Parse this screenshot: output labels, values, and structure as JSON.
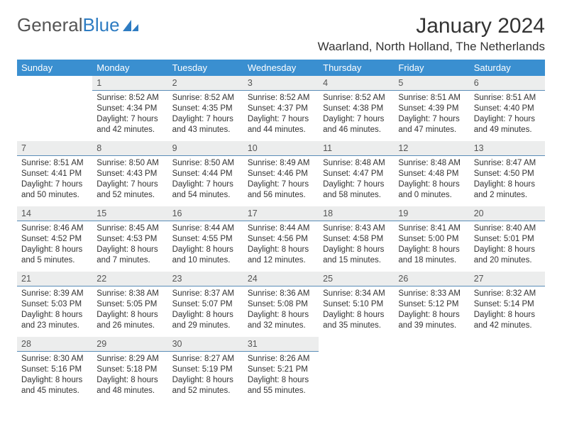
{
  "brand": {
    "part1": "General",
    "part2": "Blue"
  },
  "title": "January 2024",
  "location": "Waarland, North Holland, The Netherlands",
  "colors": {
    "header_bg": "#3a8fd0",
    "daynum_bg": "#eceded",
    "daynum_border": "#5a8db8"
  },
  "weekdays": [
    "Sunday",
    "Monday",
    "Tuesday",
    "Wednesday",
    "Thursday",
    "Friday",
    "Saturday"
  ],
  "weeks": [
    {
      "nums": [
        "",
        "1",
        "2",
        "3",
        "4",
        "5",
        "6"
      ],
      "cells": [
        null,
        {
          "sunrise": "Sunrise: 8:52 AM",
          "sunset": "Sunset: 4:34 PM",
          "day": "Daylight: 7 hours and 42 minutes."
        },
        {
          "sunrise": "Sunrise: 8:52 AM",
          "sunset": "Sunset: 4:35 PM",
          "day": "Daylight: 7 hours and 43 minutes."
        },
        {
          "sunrise": "Sunrise: 8:52 AM",
          "sunset": "Sunset: 4:37 PM",
          "day": "Daylight: 7 hours and 44 minutes."
        },
        {
          "sunrise": "Sunrise: 8:52 AM",
          "sunset": "Sunset: 4:38 PM",
          "day": "Daylight: 7 hours and 46 minutes."
        },
        {
          "sunrise": "Sunrise: 8:51 AM",
          "sunset": "Sunset: 4:39 PM",
          "day": "Daylight: 7 hours and 47 minutes."
        },
        {
          "sunrise": "Sunrise: 8:51 AM",
          "sunset": "Sunset: 4:40 PM",
          "day": "Daylight: 7 hours and 49 minutes."
        }
      ]
    },
    {
      "nums": [
        "7",
        "8",
        "9",
        "10",
        "11",
        "12",
        "13"
      ],
      "cells": [
        {
          "sunrise": "Sunrise: 8:51 AM",
          "sunset": "Sunset: 4:41 PM",
          "day": "Daylight: 7 hours and 50 minutes."
        },
        {
          "sunrise": "Sunrise: 8:50 AM",
          "sunset": "Sunset: 4:43 PM",
          "day": "Daylight: 7 hours and 52 minutes."
        },
        {
          "sunrise": "Sunrise: 8:50 AM",
          "sunset": "Sunset: 4:44 PM",
          "day": "Daylight: 7 hours and 54 minutes."
        },
        {
          "sunrise": "Sunrise: 8:49 AM",
          "sunset": "Sunset: 4:46 PM",
          "day": "Daylight: 7 hours and 56 minutes."
        },
        {
          "sunrise": "Sunrise: 8:48 AM",
          "sunset": "Sunset: 4:47 PM",
          "day": "Daylight: 7 hours and 58 minutes."
        },
        {
          "sunrise": "Sunrise: 8:48 AM",
          "sunset": "Sunset: 4:48 PM",
          "day": "Daylight: 8 hours and 0 minutes."
        },
        {
          "sunrise": "Sunrise: 8:47 AM",
          "sunset": "Sunset: 4:50 PM",
          "day": "Daylight: 8 hours and 2 minutes."
        }
      ]
    },
    {
      "nums": [
        "14",
        "15",
        "16",
        "17",
        "18",
        "19",
        "20"
      ],
      "cells": [
        {
          "sunrise": "Sunrise: 8:46 AM",
          "sunset": "Sunset: 4:52 PM",
          "day": "Daylight: 8 hours and 5 minutes."
        },
        {
          "sunrise": "Sunrise: 8:45 AM",
          "sunset": "Sunset: 4:53 PM",
          "day": "Daylight: 8 hours and 7 minutes."
        },
        {
          "sunrise": "Sunrise: 8:44 AM",
          "sunset": "Sunset: 4:55 PM",
          "day": "Daylight: 8 hours and 10 minutes."
        },
        {
          "sunrise": "Sunrise: 8:44 AM",
          "sunset": "Sunset: 4:56 PM",
          "day": "Daylight: 8 hours and 12 minutes."
        },
        {
          "sunrise": "Sunrise: 8:43 AM",
          "sunset": "Sunset: 4:58 PM",
          "day": "Daylight: 8 hours and 15 minutes."
        },
        {
          "sunrise": "Sunrise: 8:41 AM",
          "sunset": "Sunset: 5:00 PM",
          "day": "Daylight: 8 hours and 18 minutes."
        },
        {
          "sunrise": "Sunrise: 8:40 AM",
          "sunset": "Sunset: 5:01 PM",
          "day": "Daylight: 8 hours and 20 minutes."
        }
      ]
    },
    {
      "nums": [
        "21",
        "22",
        "23",
        "24",
        "25",
        "26",
        "27"
      ],
      "cells": [
        {
          "sunrise": "Sunrise: 8:39 AM",
          "sunset": "Sunset: 5:03 PM",
          "day": "Daylight: 8 hours and 23 minutes."
        },
        {
          "sunrise": "Sunrise: 8:38 AM",
          "sunset": "Sunset: 5:05 PM",
          "day": "Daylight: 8 hours and 26 minutes."
        },
        {
          "sunrise": "Sunrise: 8:37 AM",
          "sunset": "Sunset: 5:07 PM",
          "day": "Daylight: 8 hours and 29 minutes."
        },
        {
          "sunrise": "Sunrise: 8:36 AM",
          "sunset": "Sunset: 5:08 PM",
          "day": "Daylight: 8 hours and 32 minutes."
        },
        {
          "sunrise": "Sunrise: 8:34 AM",
          "sunset": "Sunset: 5:10 PM",
          "day": "Daylight: 8 hours and 35 minutes."
        },
        {
          "sunrise": "Sunrise: 8:33 AM",
          "sunset": "Sunset: 5:12 PM",
          "day": "Daylight: 8 hours and 39 minutes."
        },
        {
          "sunrise": "Sunrise: 8:32 AM",
          "sunset": "Sunset: 5:14 PM",
          "day": "Daylight: 8 hours and 42 minutes."
        }
      ]
    },
    {
      "nums": [
        "28",
        "29",
        "30",
        "31",
        "",
        "",
        ""
      ],
      "cells": [
        {
          "sunrise": "Sunrise: 8:30 AM",
          "sunset": "Sunset: 5:16 PM",
          "day": "Daylight: 8 hours and 45 minutes."
        },
        {
          "sunrise": "Sunrise: 8:29 AM",
          "sunset": "Sunset: 5:18 PM",
          "day": "Daylight: 8 hours and 48 minutes."
        },
        {
          "sunrise": "Sunrise: 8:27 AM",
          "sunset": "Sunset: 5:19 PM",
          "day": "Daylight: 8 hours and 52 minutes."
        },
        {
          "sunrise": "Sunrise: 8:26 AM",
          "sunset": "Sunset: 5:21 PM",
          "day": "Daylight: 8 hours and 55 minutes."
        },
        null,
        null,
        null
      ]
    }
  ]
}
